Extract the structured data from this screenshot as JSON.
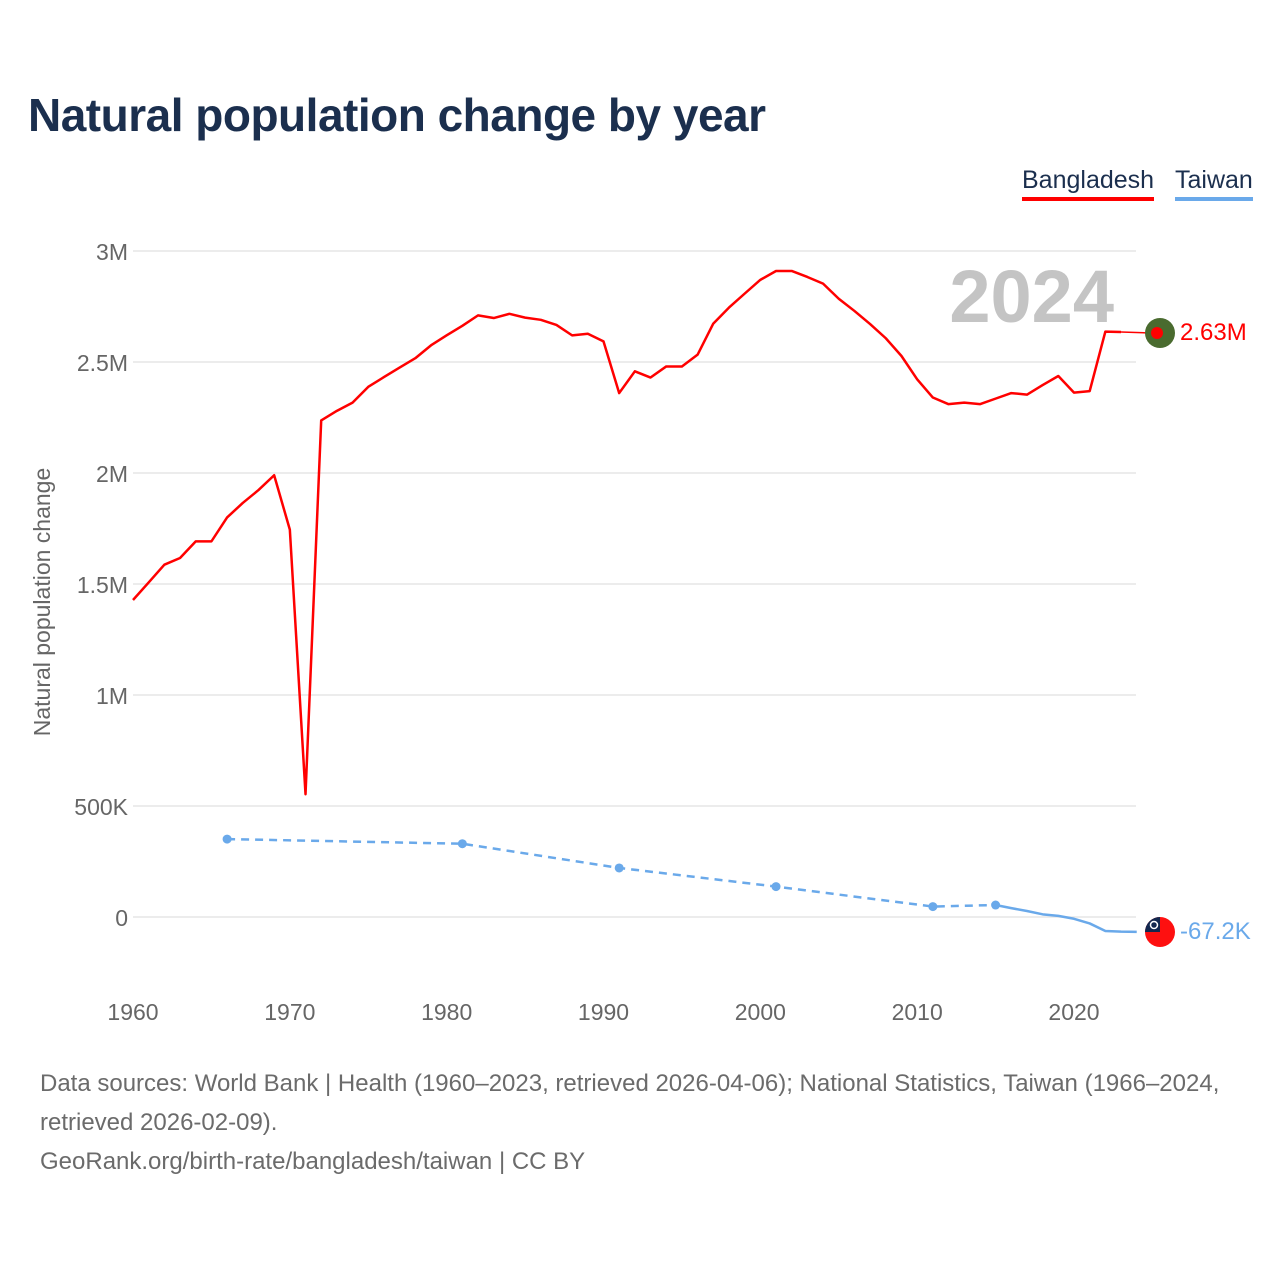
{
  "title": "Natural population change by year",
  "legend": [
    {
      "name": "Bangladesh",
      "color": "#ff0000"
    },
    {
      "name": "Taiwan",
      "color": "#6aa9ea"
    }
  ],
  "year_label": "2024",
  "chart_data": {
    "type": "line",
    "title": "Natural population change by year",
    "xlabel": "",
    "ylabel": "Natural population change",
    "xlim": [
      1960,
      2024
    ],
    "ylim": [
      -250000,
      3000000
    ],
    "x_ticks": [
      1960,
      1970,
      1980,
      1990,
      2000,
      2010,
      2020
    ],
    "x_tick_labels": [
      "1960",
      "1970",
      "1980",
      "1990",
      "2000",
      "2010",
      "2020"
    ],
    "y_ticks": [
      0,
      500000,
      1000000,
      1500000,
      2000000,
      2500000,
      3000000
    ],
    "y_tick_labels": [
      "0",
      "500K",
      "1M",
      "1.5M",
      "2M",
      "2.5M",
      "3M"
    ],
    "grid": true,
    "legend_position": "top-right",
    "series": [
      {
        "name": "Bangladesh",
        "color": "#ff0000",
        "end_label": "2.63M",
        "end_value": 2630000,
        "x": [
          1960,
          1961,
          1962,
          1963,
          1964,
          1965,
          1966,
          1967,
          1968,
          1969,
          1970,
          1971,
          1972,
          1973,
          1974,
          1975,
          1976,
          1977,
          1978,
          1979,
          1980,
          1981,
          1982,
          1983,
          1984,
          1985,
          1986,
          1987,
          1988,
          1989,
          1990,
          1991,
          1992,
          1993,
          1994,
          1995,
          1996,
          1997,
          1998,
          1999,
          2000,
          2001,
          2002,
          2003,
          2004,
          2005,
          2006,
          2007,
          2008,
          2009,
          2010,
          2011,
          2012,
          2013,
          2014,
          2015,
          2016,
          2017,
          2018,
          2019,
          2020,
          2021,
          2022,
          2023
        ],
        "y": [
          1428000,
          1507000,
          1587000,
          1617000,
          1692000,
          1692000,
          1800000,
          1865000,
          1923000,
          1990000,
          1745000,
          553000,
          2237000,
          2280000,
          2317000,
          2388000,
          2432000,
          2475000,
          2517000,
          2575000,
          2620000,
          2663000,
          2710000,
          2698000,
          2717000,
          2700000,
          2690000,
          2667000,
          2620000,
          2627000,
          2593000,
          2360000,
          2458000,
          2430000,
          2480000,
          2480000,
          2533000,
          2673000,
          2745000,
          2808000,
          2870000,
          2910000,
          2910000,
          2883000,
          2853000,
          2785000,
          2730000,
          2671000,
          2607000,
          2527000,
          2422000,
          2340000,
          2310000,
          2317000,
          2310000,
          2335000,
          2360000,
          2353000,
          2396000,
          2437000,
          2362000,
          2369000,
          2637000,
          2635000
        ]
      },
      {
        "name": "Taiwan",
        "color": "#6aa9ea",
        "end_label": "-67.2K",
        "end_value": -67200,
        "x": [
          1966,
          1981,
          1991,
          2001,
          2011,
          2015,
          2016,
          2017,
          2018,
          2019,
          2020,
          2021,
          2022,
          2023,
          2024
        ],
        "y": [
          351000,
          330000,
          221000,
          137000,
          47000,
          54000,
          40000,
          27000,
          12000,
          5000,
          -8000,
          -29000,
          -63000,
          -66000,
          -67200
        ],
        "sparse_until": 2015
      }
    ]
  },
  "footer": {
    "sources": "Data sources: World Bank | Health (1960–2023, retrieved 2026-04-06); National Statistics, Taiwan (1966–2024, retrieved 2026-02-09).",
    "link": "GeoRank.org/birth-rate/bangladesh/taiwan | CC BY"
  }
}
